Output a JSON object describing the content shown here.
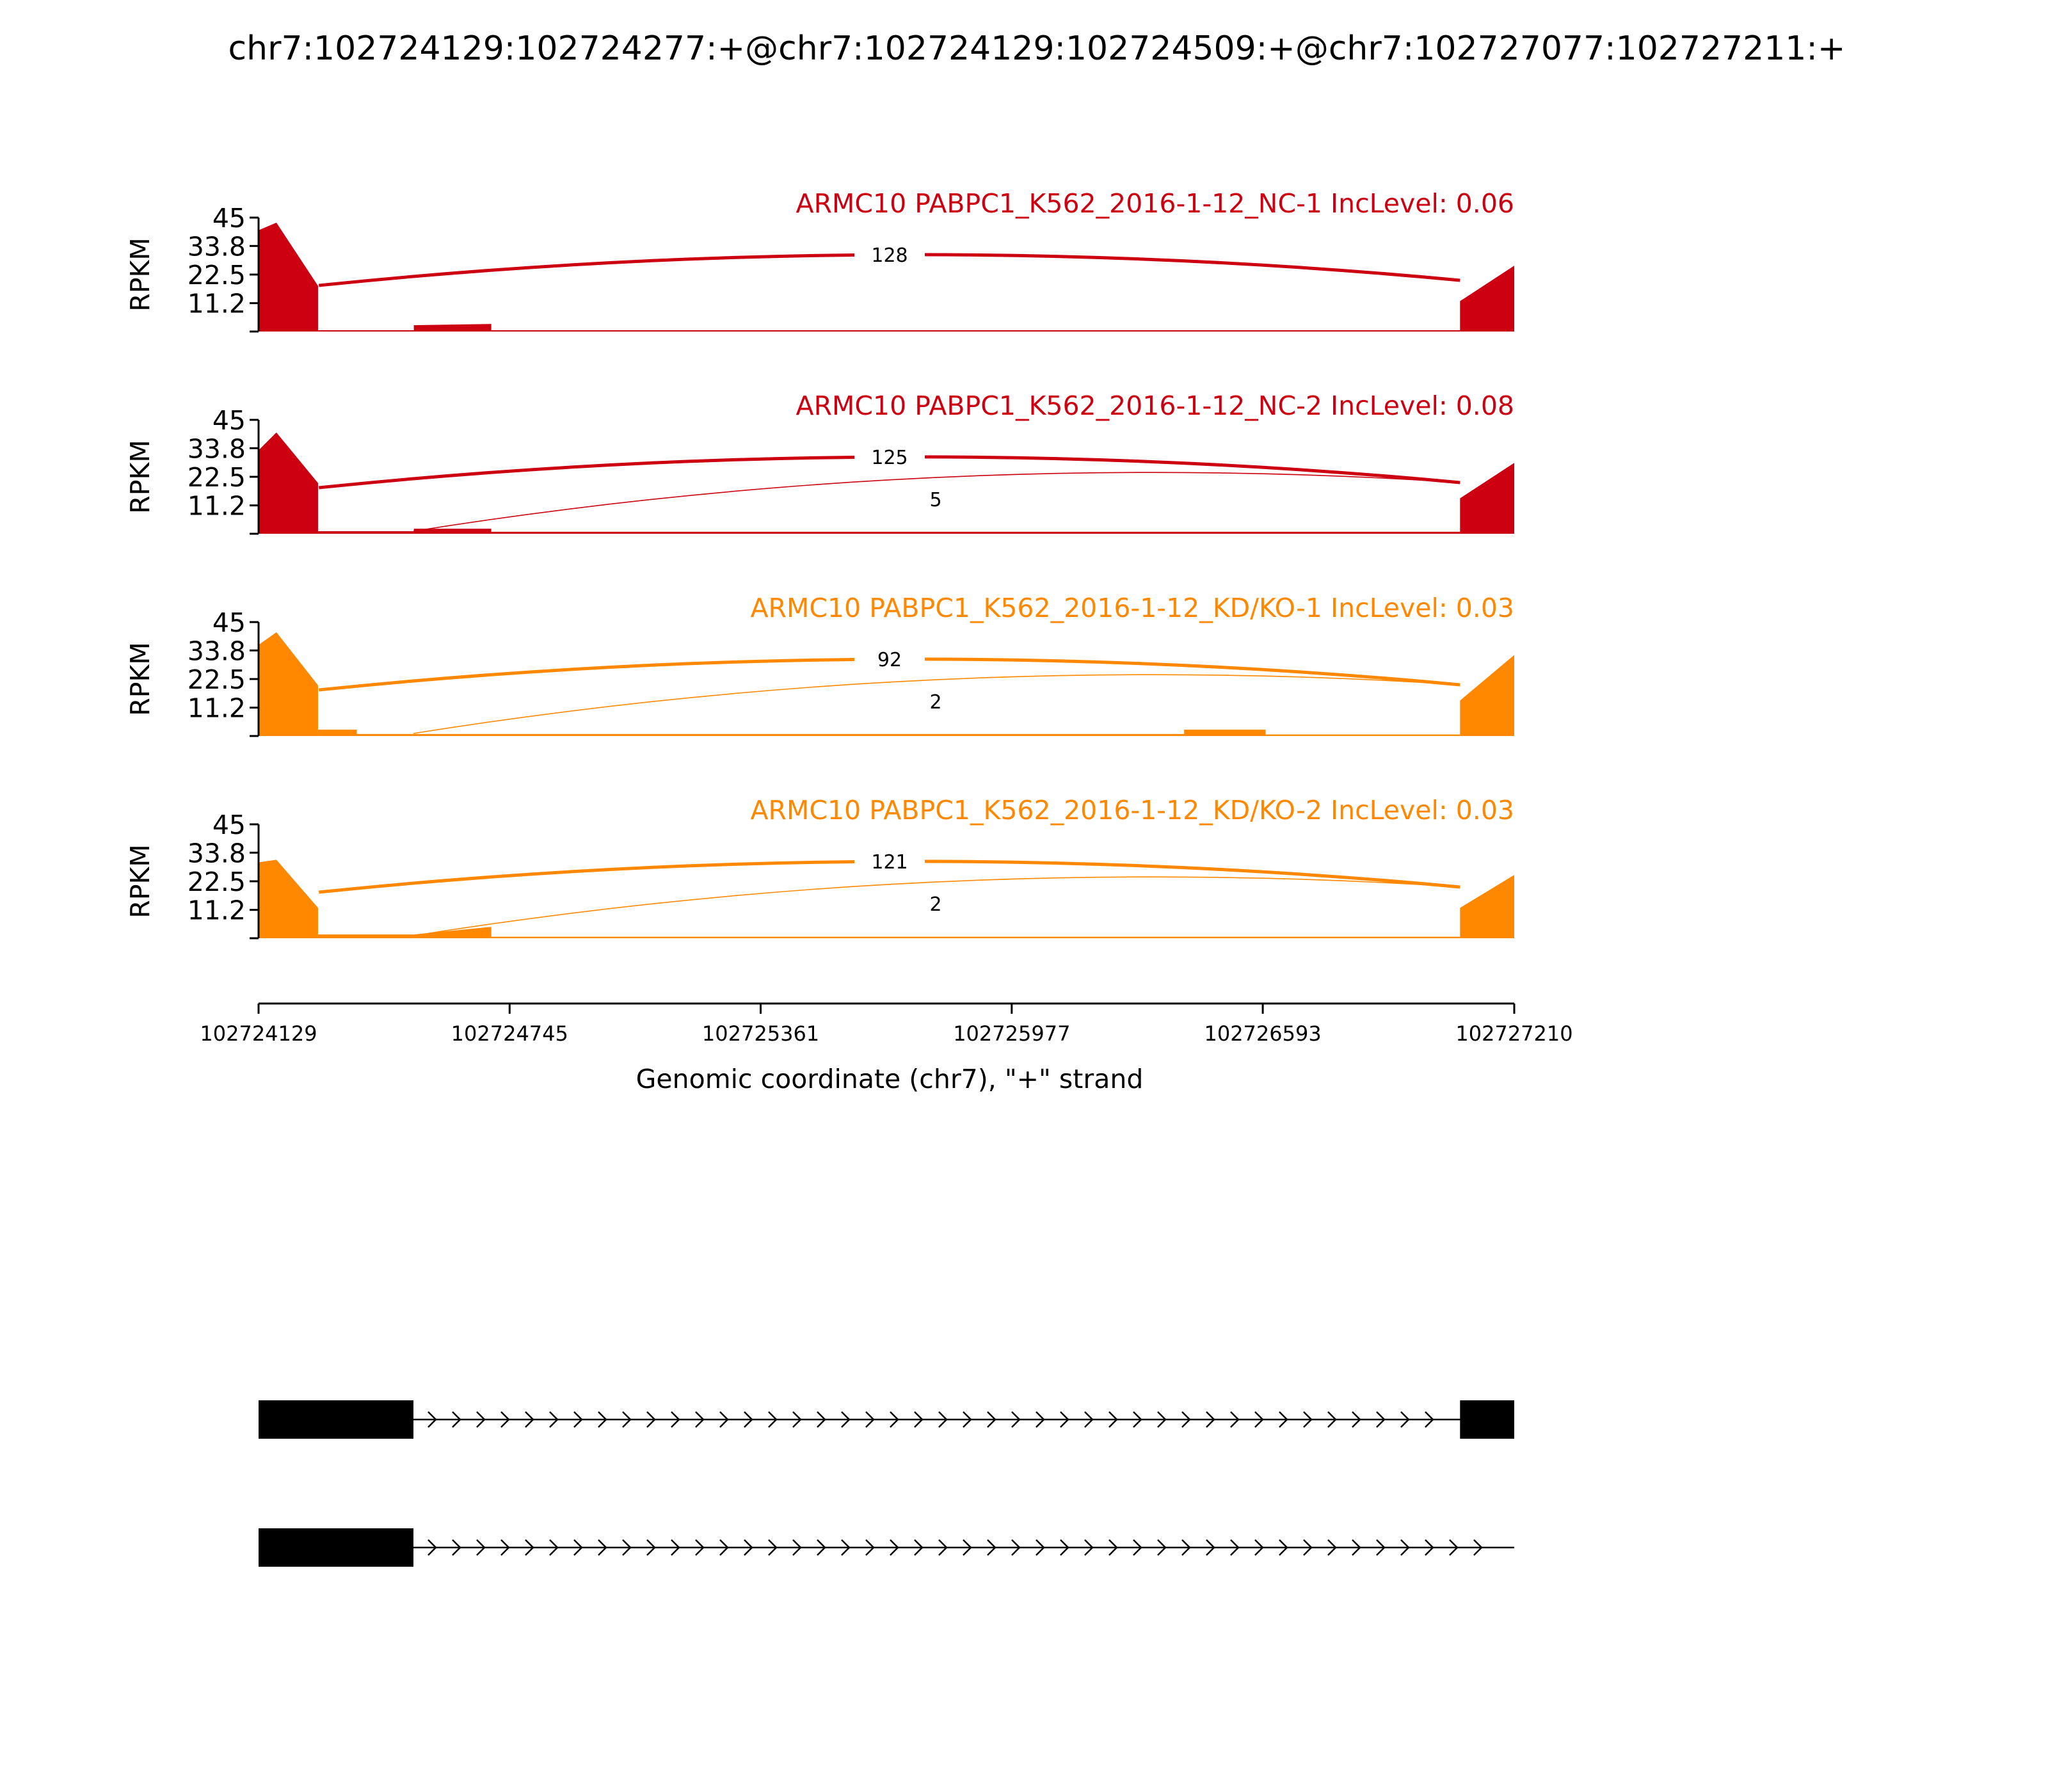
{
  "chart_data": {
    "type": "area",
    "title": "chr7:102724129:102724277:+@chr7:102724129:102724509:+@chr7:102727077:102727211:+",
    "xlabel": "Genomic coordinate (chr7), \"+\" strand",
    "ylabel": "RPKM",
    "xlim": [
      102724129,
      102727210
    ],
    "xticks": [
      "102724129",
      "102724745",
      "102725361",
      "102725977",
      "102726593",
      "102727210"
    ],
    "ylim": [
      0,
      45
    ],
    "yticks": [
      "45",
      "33.8",
      "22.5",
      "11.2"
    ],
    "tracks": [
      {
        "label": "ARMC10 PABPC1_K562_2016-1-12_NC-1 IncLevel: 0.06",
        "color": "#cc0011",
        "coverage": [
          {
            "x": [
              102724129,
              102724275
            ],
            "y_start": 40,
            "y_end": 18,
            "peak": 43
          },
          {
            "x": [
              102724275,
              102724510
            ],
            "y_start": 0.5,
            "y_end": 0.5
          },
          {
            "x": [
              102724510,
              102724700
            ],
            "y_start": 2.5,
            "y_end": 3
          },
          {
            "x": [
              102724700,
              102727077
            ],
            "y_start": 0.5,
            "y_end": 0.5
          },
          {
            "x": [
              102727077,
              102727210
            ],
            "y_start": 12,
            "y_end": 26
          }
        ],
        "junctions": [
          {
            "start": 102724277,
            "end": 102727077,
            "count": "128"
          }
        ]
      },
      {
        "label": "ARMC10 PABPC1_K562_2016-1-12_NC-2 IncLevel: 0.08",
        "color": "#cc0011",
        "coverage": [
          {
            "x": [
              102724129,
              102724275
            ],
            "y_start": 33,
            "y_end": 20,
            "peak": 40
          },
          {
            "x": [
              102724275,
              102724510
            ],
            "y_start": 1,
            "y_end": 1
          },
          {
            "x": [
              102724510,
              102724700
            ],
            "y_start": 2,
            "y_end": 2
          },
          {
            "x": [
              102724700,
              102727077
            ],
            "y_start": 0.8,
            "y_end": 0.8
          },
          {
            "x": [
              102727077,
              102727210
            ],
            "y_start": 14,
            "y_end": 28
          }
        ],
        "junctions": [
          {
            "start": 102724277,
            "end": 102727077,
            "count": "125"
          },
          {
            "start": 102724509,
            "end": 102727077,
            "count": "5"
          }
        ]
      },
      {
        "label": "ARMC10 PABPC1_K562_2016-1-12_KD/KO-1 IncLevel: 0.03",
        "color": "#ff8800",
        "coverage": [
          {
            "x": [
              102724129,
              102724275
            ],
            "y_start": 36,
            "y_end": 20,
            "peak": 41
          },
          {
            "x": [
              102724275,
              102724370
            ],
            "y_start": 2.5,
            "y_end": 2.5
          },
          {
            "x": [
              102724370,
              102726400
            ],
            "y_start": 0.8,
            "y_end": 0.8
          },
          {
            "x": [
              102726400,
              102726600
            ],
            "y_start": 2.5,
            "y_end": 2.5
          },
          {
            "x": [
              102726600,
              102727077
            ],
            "y_start": 0.6,
            "y_end": 0.6
          },
          {
            "x": [
              102727077,
              102727210
            ],
            "y_start": 14,
            "y_end": 32
          }
        ],
        "junctions": [
          {
            "start": 102724277,
            "end": 102727077,
            "count": "92"
          },
          {
            "start": 102724509,
            "end": 102727077,
            "count": "2"
          }
        ]
      },
      {
        "label": "ARMC10 PABPC1_K562_2016-1-12_KD/KO-2 IncLevel: 0.03",
        "color": "#ff8800",
        "coverage": [
          {
            "x": [
              102724129,
              102724275
            ],
            "y_start": 30,
            "y_end": 12,
            "peak": 31
          },
          {
            "x": [
              102724275,
              102724510
            ],
            "y_start": 1.5,
            "y_end": 1.5
          },
          {
            "x": [
              102724510,
              102724700
            ],
            "y_start": 1.5,
            "y_end": 4.5
          },
          {
            "x": [
              102724700,
              102727077
            ],
            "y_start": 0.6,
            "y_end": 0.6
          },
          {
            "x": [
              102727077,
              102727210
            ],
            "y_start": 12,
            "y_end": 25
          }
        ],
        "junctions": [
          {
            "start": 102724277,
            "end": 102727077,
            "count": "121"
          },
          {
            "start": 102724509,
            "end": 102727077,
            "count": "2"
          }
        ]
      }
    ],
    "gene_models": [
      {
        "exons": [
          [
            102724129,
            102724509
          ],
          [
            102727077,
            102727210
          ]
        ],
        "line": [
          102724509,
          102727210
        ]
      },
      {
        "exons": [
          [
            102724129,
            102724509
          ]
        ],
        "line": [
          102724509,
          102727210
        ]
      }
    ]
  }
}
